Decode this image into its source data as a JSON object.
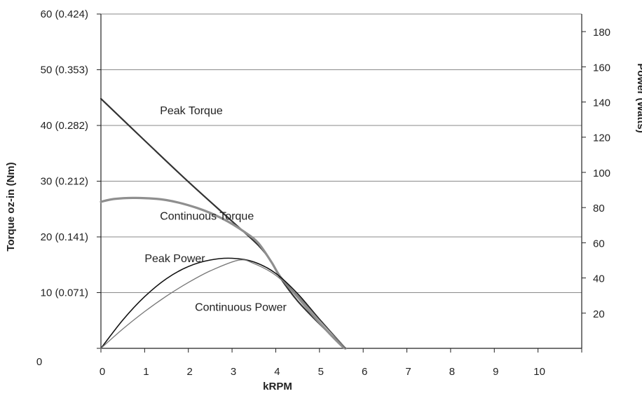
{
  "chart_data": {
    "type": "line",
    "xlabel": "kRPM",
    "ylabel_left": "Torque oz-in (Nm)",
    "ylabel_right": "Power (Watts)",
    "xlim": [
      0,
      11
    ],
    "ylim_left": [
      0,
      60
    ],
    "ylim_right": [
      0,
      190
    ],
    "grid": "horizontal",
    "x_ticks": [
      "0",
      "1",
      "2",
      "3",
      "4",
      "5",
      "6",
      "7",
      "8",
      "9",
      "10"
    ],
    "y_left_ticks": [
      {
        "value": 0,
        "label": "0"
      },
      {
        "value": 10,
        "label": "10 (0.071)"
      },
      {
        "value": 20,
        "label": "20 (0.141)"
      },
      {
        "value": 30,
        "label": "30 (0.212)"
      },
      {
        "value": 40,
        "label": "40 (0.282)"
      },
      {
        "value": 50,
        "label": "50 (0.353)"
      },
      {
        "value": 60,
        "label": "60 (0.424)"
      }
    ],
    "y_right_ticks": [
      "20",
      "40",
      "60",
      "80",
      "100",
      "120",
      "140",
      "160",
      "180"
    ],
    "series": [
      {
        "name": "Peak Torque",
        "axis": "left",
        "color": "#333333",
        "points": [
          [
            0,
            44.8
          ],
          [
            1,
            37.3
          ],
          [
            2,
            29.9
          ],
          [
            3,
            22.8
          ],
          [
            3.6,
            18.5
          ],
          [
            3.9,
            15.5
          ],
          [
            4.1,
            12.7
          ],
          [
            4.5,
            8.5
          ],
          [
            5,
            4.4
          ],
          [
            5.5,
            0.7
          ],
          [
            5.6,
            0
          ]
        ]
      },
      {
        "name": "Continuous Torque",
        "axis": "left",
        "color": "#8f8f8f",
        "points": [
          [
            0,
            26.3
          ],
          [
            0.3,
            26.8
          ],
          [
            0.8,
            27.0
          ],
          [
            1.5,
            26.6
          ],
          [
            2.2,
            25.2
          ],
          [
            2.8,
            23.2
          ],
          [
            3.3,
            20.8
          ],
          [
            3.6,
            18.9
          ],
          [
            3.9,
            15.5
          ],
          [
            4.1,
            12.9
          ],
          [
            4.5,
            9.2
          ],
          [
            5,
            4.6
          ],
          [
            5.5,
            0.5
          ],
          [
            5.6,
            0
          ]
        ]
      },
      {
        "name": "Peak Power",
        "axis": "right",
        "color": "#111111",
        "points": [
          [
            0,
            0
          ],
          [
            0.5,
            16.1
          ],
          [
            1,
            29.4
          ],
          [
            1.5,
            39.6
          ],
          [
            2,
            46.5
          ],
          [
            2.5,
            50.2
          ],
          [
            3,
            51.2
          ],
          [
            3.5,
            49.1
          ],
          [
            4,
            42.6
          ],
          [
            4.5,
            31.1
          ],
          [
            5,
            16.6
          ],
          [
            5.6,
            0
          ]
        ]
      },
      {
        "name": "Continuous Power",
        "axis": "right",
        "color": "#777777",
        "points": [
          [
            0,
            0
          ],
          [
            0.5,
            11.0
          ],
          [
            1,
            20.9
          ],
          [
            1.5,
            29.7
          ],
          [
            2,
            37.4
          ],
          [
            2.5,
            44.0
          ],
          [
            3.15,
            50.1
          ],
          [
            3.5,
            48.2
          ],
          [
            4,
            41.5
          ],
          [
            4.5,
            30.1
          ],
          [
            5,
            16.1
          ],
          [
            5.6,
            0
          ]
        ]
      }
    ],
    "annotations": [
      {
        "text": "Peak Torque",
        "x": 1.35,
        "y": 42.0,
        "axis": "left"
      },
      {
        "text": "Continuous Torque",
        "x": 1.35,
        "y": 23.1,
        "axis": "left"
      },
      {
        "text": "Peak Power",
        "x": 1.0,
        "y": 15.5,
        "axis": "left"
      },
      {
        "text": "Continuous Power",
        "x": 2.15,
        "y": 6.7,
        "axis": "left"
      }
    ]
  }
}
